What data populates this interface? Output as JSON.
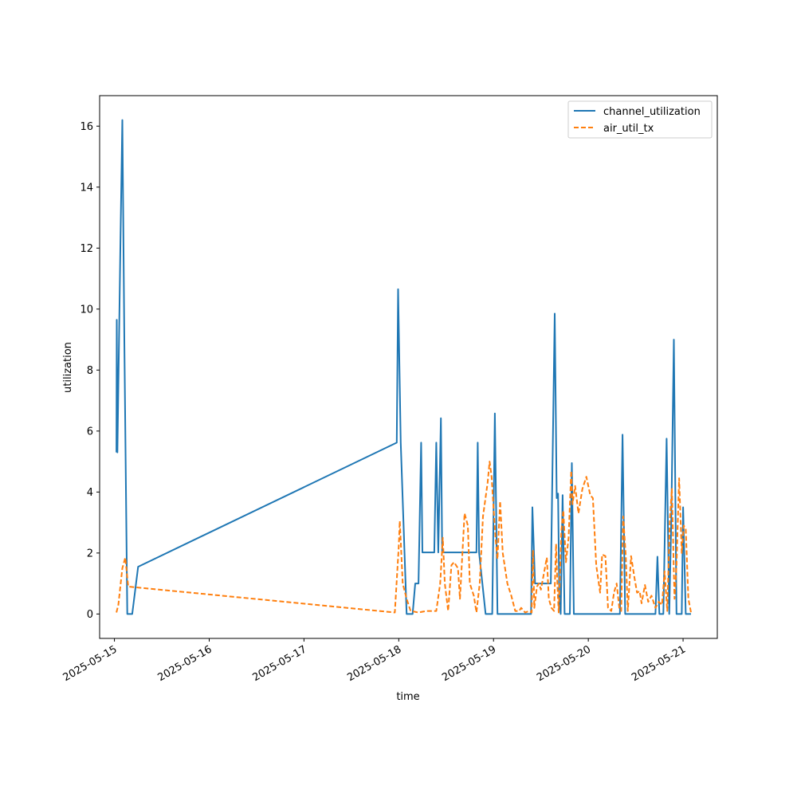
{
  "chart_data": {
    "type": "line",
    "title": "",
    "xlabel": "time",
    "ylabel": "utilization",
    "x_range": [
      "2025-05-14T20:15",
      "2025-05-21T08:40"
    ],
    "ylim": [
      -0.8,
      17
    ],
    "x_ticks": [
      "2025-05-15",
      "2025-05-16",
      "2025-05-17",
      "2025-05-18",
      "2025-05-19",
      "2025-05-20",
      "2025-05-21"
    ],
    "y_ticks": [
      0,
      2,
      4,
      6,
      8,
      10,
      12,
      14,
      16
    ],
    "grid": false,
    "legend_position": "top-right",
    "series": [
      {
        "name": "channel_utilization",
        "color": "#1f77b4",
        "style": "solid",
        "points": [
          [
            "2025-05-15T00:30",
            5.3
          ],
          [
            "2025-05-15T00:35",
            9.65
          ],
          [
            "2025-05-15T00:45",
            5.3
          ],
          [
            "2025-05-15T01:30",
            12.0
          ],
          [
            "2025-05-15T02:00",
            16.2
          ],
          [
            "2025-05-15T02:30",
            9.0
          ],
          [
            "2025-05-15T03:15",
            0
          ],
          [
            "2025-05-15T04:30",
            0
          ],
          [
            "2025-05-15T06:00",
            1.55
          ],
          [
            "2025-05-17T23:30",
            5.62
          ],
          [
            "2025-05-17T23:50",
            10.65
          ],
          [
            "2025-05-18T00:30",
            5.62
          ],
          [
            "2025-05-18T02:00",
            0
          ],
          [
            "2025-05-18T03:30",
            0
          ],
          [
            "2025-05-18T04:10",
            1.0
          ],
          [
            "2025-05-18T05:00",
            1.0
          ],
          [
            "2025-05-18T05:40",
            5.62
          ],
          [
            "2025-05-18T06:00",
            2.02
          ],
          [
            "2025-05-18T09:00",
            2.02
          ],
          [
            "2025-05-18T09:30",
            5.62
          ],
          [
            "2025-05-18T10:00",
            2.02
          ],
          [
            "2025-05-18T10:40",
            6.42
          ],
          [
            "2025-05-18T11:00",
            2.02
          ],
          [
            "2025-05-18T19:40",
            2.02
          ],
          [
            "2025-05-18T20:00",
            5.62
          ],
          [
            "2025-05-18T20:20",
            2.02
          ],
          [
            "2025-05-18T22:00",
            0
          ],
          [
            "2025-05-18T23:40",
            0
          ],
          [
            "2025-05-19T00:20",
            6.58
          ],
          [
            "2025-05-19T01:00",
            0
          ],
          [
            "2025-05-19T09:30",
            0
          ],
          [
            "2025-05-19T09:50",
            3.5
          ],
          [
            "2025-05-19T10:30",
            1.0
          ],
          [
            "2025-05-19T14:30",
            1.0
          ],
          [
            "2025-05-19T15:30",
            9.85
          ],
          [
            "2025-05-19T16:00",
            3.8
          ],
          [
            "2025-05-19T16:20",
            3.95
          ],
          [
            "2025-05-19T16:40",
            0.5
          ],
          [
            "2025-05-19T17:00",
            0
          ],
          [
            "2025-05-19T17:30",
            3.9
          ],
          [
            "2025-05-19T18:00",
            0
          ],
          [
            "2025-05-19T19:20",
            0
          ],
          [
            "2025-05-19T19:50",
            4.95
          ],
          [
            "2025-05-19T20:20",
            0
          ],
          [
            "2025-05-20T08:00",
            0
          ],
          [
            "2025-05-20T08:40",
            5.88
          ],
          [
            "2025-05-20T09:20",
            0
          ],
          [
            "2025-05-20T17:00",
            0
          ],
          [
            "2025-05-20T17:30",
            1.88
          ],
          [
            "2025-05-20T18:00",
            0
          ],
          [
            "2025-05-20T19:00",
            0
          ],
          [
            "2025-05-20T19:50",
            5.75
          ],
          [
            "2025-05-20T20:30",
            0
          ],
          [
            "2025-05-20T21:00",
            3.0
          ],
          [
            "2025-05-20T21:40",
            9.0
          ],
          [
            "2025-05-20T22:20",
            0
          ],
          [
            "2025-05-20T23:40",
            0
          ],
          [
            "2025-05-21T00:00",
            3.5
          ],
          [
            "2025-05-21T00:40",
            0
          ],
          [
            "2025-05-21T02:00",
            0
          ]
        ]
      },
      {
        "name": "air_util_tx",
        "color": "#ff7f0e",
        "style": "dashed",
        "points": [
          [
            "2025-05-15T00:30",
            0.05
          ],
          [
            "2025-05-15T01:00",
            0.3
          ],
          [
            "2025-05-15T02:00",
            1.5
          ],
          [
            "2025-05-15T02:45",
            1.85
          ],
          [
            "2025-05-15T03:30",
            0.9
          ],
          [
            "2025-05-17T23:00",
            0.05
          ],
          [
            "2025-05-18T00:00",
            2.2
          ],
          [
            "2025-05-18T00:15",
            3.05
          ],
          [
            "2025-05-18T01:00",
            1.0
          ],
          [
            "2025-05-18T02:00",
            0.5
          ],
          [
            "2025-05-18T03:00",
            0.1
          ],
          [
            "2025-05-18T05:00",
            0.05
          ],
          [
            "2025-05-18T07:00",
            0.1
          ],
          [
            "2025-05-18T09:30",
            0.1
          ],
          [
            "2025-05-18T10:30",
            1.0
          ],
          [
            "2025-05-18T11:10",
            2.5
          ],
          [
            "2025-05-18T11:40",
            1.0
          ],
          [
            "2025-05-18T12:30",
            0.1
          ],
          [
            "2025-05-18T13:20",
            1.6
          ],
          [
            "2025-05-18T14:00",
            1.7
          ],
          [
            "2025-05-18T15:00",
            1.5
          ],
          [
            "2025-05-18T15:30",
            0.5
          ],
          [
            "2025-05-18T16:40",
            3.3
          ],
          [
            "2025-05-18T17:30",
            2.9
          ],
          [
            "2025-05-18T18:00",
            1.0
          ],
          [
            "2025-05-18T19:00",
            0.6
          ],
          [
            "2025-05-18T19:40",
            0.05
          ],
          [
            "2025-05-18T20:30",
            1.0
          ],
          [
            "2025-05-18T21:20",
            3.2
          ],
          [
            "2025-05-18T22:30",
            4.3
          ],
          [
            "2025-05-18T23:00",
            5.0
          ],
          [
            "2025-05-18T23:30",
            4.5
          ],
          [
            "2025-05-19T00:00",
            3.5
          ],
          [
            "2025-05-19T00:30",
            2.5
          ],
          [
            "2025-05-19T01:00",
            1.8
          ],
          [
            "2025-05-19T01:40",
            3.7
          ],
          [
            "2025-05-19T02:20",
            2.0
          ],
          [
            "2025-05-19T03:30",
            1.0
          ],
          [
            "2025-05-19T04:30",
            0.6
          ],
          [
            "2025-05-19T05:30",
            0.1
          ],
          [
            "2025-05-19T06:30",
            0.1
          ],
          [
            "2025-05-19T07:00",
            0.2
          ],
          [
            "2025-05-19T08:00",
            0.05
          ],
          [
            "2025-05-19T09:00",
            0.1
          ],
          [
            "2025-05-19T09:40",
            0.05
          ],
          [
            "2025-05-19T10:00",
            2.1
          ],
          [
            "2025-05-19T10:20",
            0.2
          ],
          [
            "2025-05-19T11:00",
            0.9
          ],
          [
            "2025-05-19T11:30",
            1.0
          ],
          [
            "2025-05-19T12:00",
            0.8
          ],
          [
            "2025-05-19T13:30",
            1.85
          ],
          [
            "2025-05-19T14:00",
            0.5
          ],
          [
            "2025-05-19T14:40",
            0.2
          ],
          [
            "2025-05-19T15:20",
            0.1
          ],
          [
            "2025-05-19T15:50",
            2.3
          ],
          [
            "2025-05-19T16:10",
            1.0
          ],
          [
            "2025-05-19T16:30",
            0.05
          ],
          [
            "2025-05-19T17:10",
            2.7
          ],
          [
            "2025-05-19T17:40",
            3.4
          ],
          [
            "2025-05-19T18:20",
            1.7
          ],
          [
            "2025-05-19T19:00",
            2.5
          ],
          [
            "2025-05-19T19:40",
            4.7
          ],
          [
            "2025-05-19T20:00",
            3.6
          ],
          [
            "2025-05-19T20:40",
            4.2
          ],
          [
            "2025-05-19T21:30",
            3.3
          ],
          [
            "2025-05-19T22:30",
            4.1
          ],
          [
            "2025-05-19T23:30",
            4.5
          ],
          [
            "2025-05-20T00:30",
            3.9
          ],
          [
            "2025-05-20T01:10",
            3.8
          ],
          [
            "2025-05-20T02:00",
            1.6
          ],
          [
            "2025-05-20T03:00",
            0.7
          ],
          [
            "2025-05-20T03:30",
            1.95
          ],
          [
            "2025-05-20T04:20",
            1.9
          ],
          [
            "2025-05-20T05:00",
            0.2
          ],
          [
            "2025-05-20T05:50",
            0.1
          ],
          [
            "2025-05-20T06:30",
            0.7
          ],
          [
            "2025-05-20T07:10",
            1.0
          ],
          [
            "2025-05-20T07:50",
            0.2
          ],
          [
            "2025-05-20T08:20",
            0.1
          ],
          [
            "2025-05-20T08:50",
            3.2
          ],
          [
            "2025-05-20T09:30",
            1.9
          ],
          [
            "2025-05-20T10:00",
            0.1
          ],
          [
            "2025-05-20T10:50",
            1.9
          ],
          [
            "2025-05-20T11:40",
            1.2
          ],
          [
            "2025-05-20T12:20",
            0.7
          ],
          [
            "2025-05-20T13:00",
            0.75
          ],
          [
            "2025-05-20T13:30",
            0.35
          ],
          [
            "2025-05-20T14:20",
            0.95
          ],
          [
            "2025-05-20T15:10",
            0.4
          ],
          [
            "2025-05-20T16:00",
            0.6
          ],
          [
            "2025-05-20T17:00",
            0.2
          ],
          [
            "2025-05-20T17:50",
            0.4
          ],
          [
            "2025-05-20T18:40",
            0.3
          ],
          [
            "2025-05-20T19:20",
            1.4
          ],
          [
            "2025-05-20T20:00",
            0.1
          ],
          [
            "2025-05-20T20:40",
            3.1
          ],
          [
            "2025-05-20T21:10",
            4.1
          ],
          [
            "2025-05-20T21:50",
            0.5
          ],
          [
            "2025-05-20T22:20",
            1.6
          ],
          [
            "2025-05-20T23:00",
            4.45
          ],
          [
            "2025-05-20T23:40",
            2.0
          ],
          [
            "2025-05-21T00:10",
            2.9
          ],
          [
            "2025-05-21T00:40",
            2.8
          ],
          [
            "2025-05-21T01:20",
            0.5
          ],
          [
            "2025-05-21T02:00",
            0.05
          ]
        ]
      }
    ]
  }
}
